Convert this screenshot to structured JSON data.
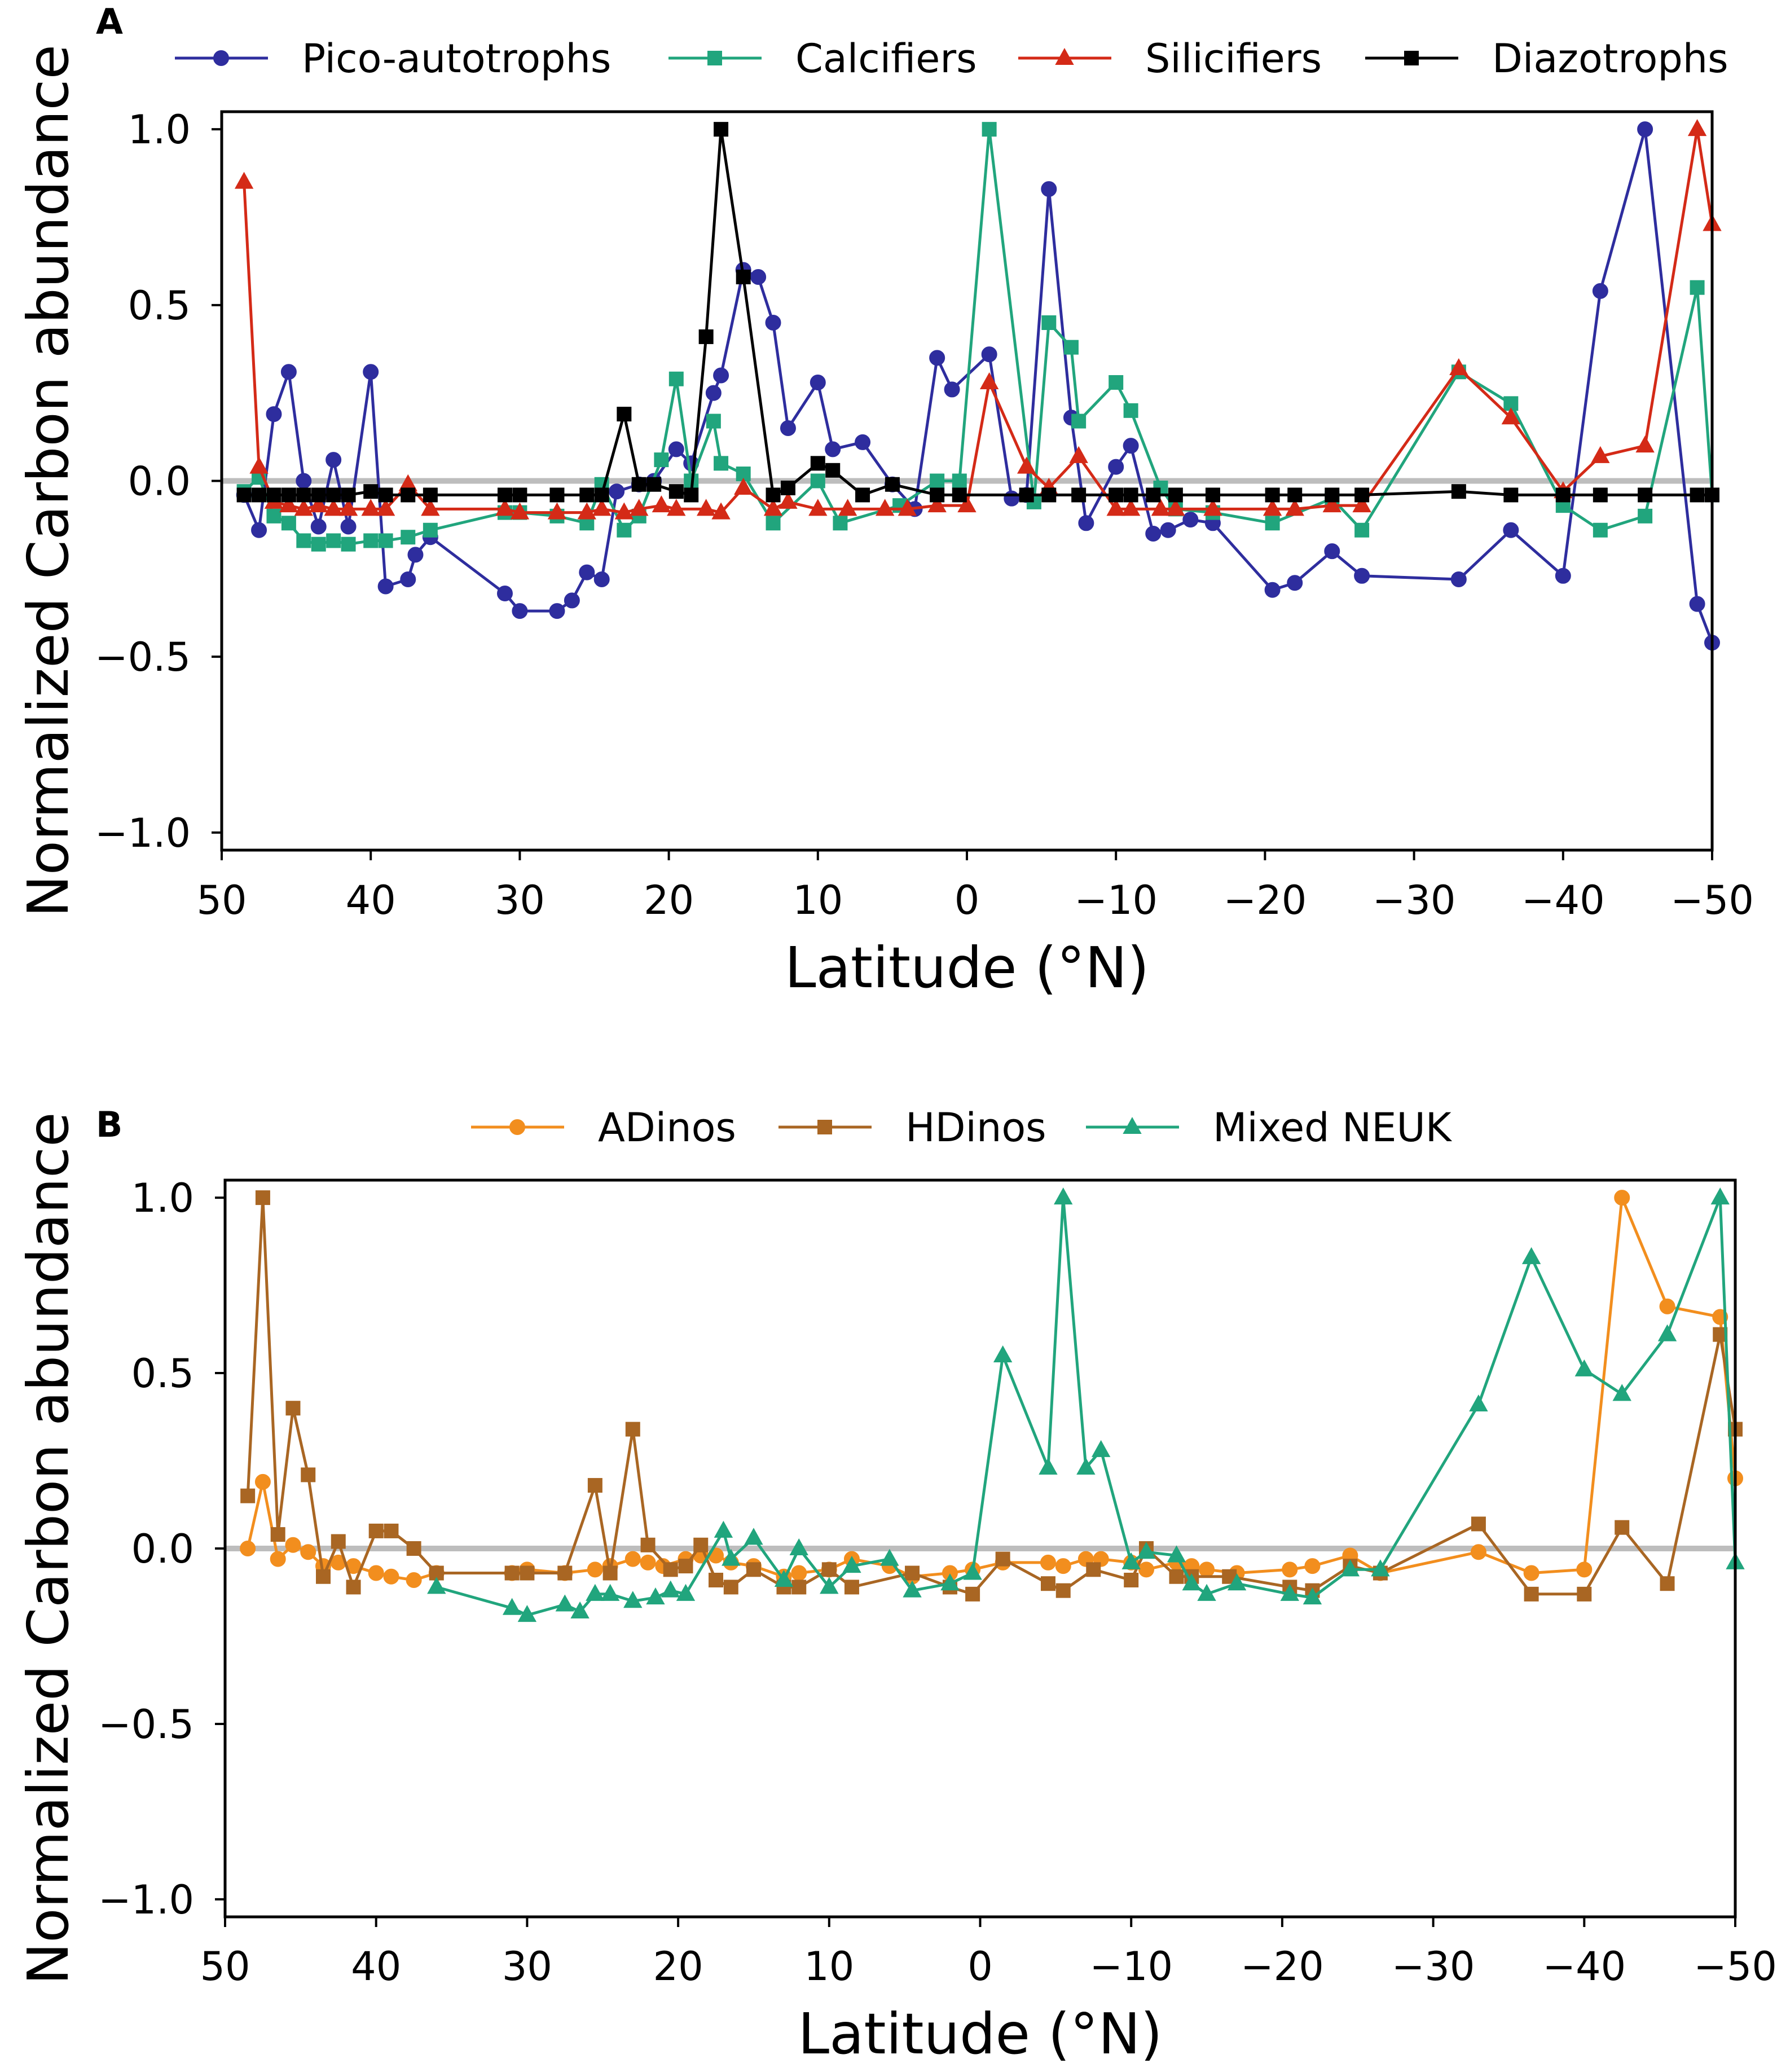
{
  "chart_data": [
    {
      "panel": "A",
      "type": "line",
      "ylabel": "Normalized Carbon abundance",
      "xlabel": "Latitude (°N)",
      "xlim": [
        50,
        -50
      ],
      "ylim": [
        -1.05,
        1.05
      ],
      "xticks": [
        50,
        40,
        30,
        20,
        10,
        0,
        -10,
        -20,
        -30,
        -40,
        -50
      ],
      "xtick_labels": [
        "50",
        "40",
        "30",
        "20",
        "10",
        "0",
        "−10",
        "−20",
        "−30",
        "−40",
        "−50"
      ],
      "yticks": [
        1.0,
        0.5,
        0.0,
        -0.5,
        -1.0
      ],
      "ytick_labels": [
        "1.0",
        "0.5",
        "0.0",
        "−0.5",
        "−1.0"
      ],
      "legend_position": "top",
      "reference_line": 0,
      "series": [
        {
          "name": "Pico-autotrophs",
          "color": "#2e2d9e",
          "marker": "circle",
          "x": [
            48.5,
            47.5,
            46.5,
            45.5,
            44.5,
            43.5,
            42.5,
            41.5,
            40,
            39,
            37.5,
            37,
            36,
            31,
            30,
            27.5,
            26.5,
            25.5,
            24.5,
            23.5,
            22,
            21,
            19.5,
            18.5,
            17,
            16.5,
            15,
            14,
            13,
            12,
            10,
            9,
            7,
            5,
            3.5,
            2,
            1,
            -1.5,
            -3,
            -4,
            -5.5,
            -7,
            -8,
            -10,
            -11,
            -12.5,
            -13.5,
            -15,
            -16.5,
            -20.5,
            -22,
            -24.5,
            -26.5,
            -33,
            -36.5,
            -40,
            -42.5,
            -45.5,
            -49,
            -50
          ],
          "y": [
            -0.04,
            -0.14,
            0.19,
            0.31,
            0.0,
            -0.13,
            0.06,
            -0.13,
            0.31,
            -0.3,
            -0.28,
            -0.21,
            -0.16,
            -0.32,
            -0.37,
            -0.37,
            -0.34,
            -0.26,
            -0.28,
            -0.03,
            -0.01,
            0.0,
            0.09,
            0.05,
            0.25,
            0.3,
            0.6,
            0.58,
            0.45,
            0.15,
            0.28,
            0.09,
            0.11,
            -0.01,
            -0.08,
            0.35,
            0.26,
            0.36,
            -0.05,
            -0.04,
            0.83,
            0.18,
            -0.12,
            0.04,
            0.1,
            -0.15,
            -0.14,
            -0.11,
            -0.12,
            -0.31,
            -0.29,
            -0.2,
            -0.27,
            -0.28,
            -0.14,
            -0.27,
            0.54,
            1.0,
            -0.35,
            -0.46
          ]
        },
        {
          "name": "Calcifiers",
          "color": "#21a57d",
          "marker": "square",
          "x": [
            48.5,
            47.5,
            46.5,
            45.5,
            44.5,
            43.5,
            42.5,
            41.5,
            40,
            39,
            37.5,
            36,
            31,
            30,
            27.5,
            25.5,
            24.5,
            23,
            22,
            20.5,
            19.5,
            18.5,
            17,
            16.5,
            15,
            13,
            10,
            8.5,
            4.5,
            2,
            0.5,
            -1.5,
            -4.5,
            -5.5,
            -7,
            -7.5,
            -10,
            -11,
            -13,
            -14,
            -16.5,
            -20.5,
            -24.5,
            -26.5,
            -33,
            -36.5,
            -40,
            -42.5,
            -45.5,
            -49,
            -50
          ],
          "y": [
            -0.03,
            0.01,
            -0.1,
            -0.12,
            -0.17,
            -0.18,
            -0.17,
            -0.18,
            -0.17,
            -0.17,
            -0.16,
            -0.14,
            -0.09,
            -0.09,
            -0.1,
            -0.12,
            -0.01,
            -0.14,
            -0.1,
            0.06,
            0.29,
            0.0,
            0.17,
            0.05,
            0.02,
            -0.12,
            0.0,
            -0.12,
            -0.07,
            0.0,
            0.0,
            1.0,
            -0.06,
            0.45,
            0.38,
            0.17,
            0.28,
            0.2,
            -0.02,
            -0.08,
            -0.09,
            -0.12,
            -0.05,
            -0.14,
            0.31,
            0.22,
            -0.07,
            -0.14,
            -0.1,
            0.55,
            -0.04
          ]
        },
        {
          "name": "Silicifiers",
          "color": "#d42a17",
          "marker": "triangle",
          "x": [
            48.5,
            47.5,
            46.5,
            45.5,
            44.5,
            43.5,
            42.5,
            41.5,
            40,
            39,
            37.5,
            36,
            31,
            30,
            27.5,
            25.5,
            24.5,
            23,
            22,
            20.5,
            19.5,
            17.5,
            16.5,
            15,
            13,
            12,
            10,
            8,
            5.5,
            4,
            2,
            0,
            -1.5,
            -4,
            -5.5,
            -7.5,
            -10,
            -11,
            -13,
            -14,
            -16.5,
            -20.5,
            -22,
            -24.5,
            -26.5,
            -33,
            -36.5,
            -40,
            -42.5,
            -45.5,
            -49,
            -50
          ],
          "y": [
            0.85,
            0.04,
            -0.06,
            -0.07,
            -0.08,
            -0.07,
            -0.08,
            -0.08,
            -0.08,
            -0.08,
            -0.01,
            -0.08,
            -0.08,
            -0.09,
            -0.09,
            -0.09,
            -0.08,
            -0.09,
            -0.08,
            -0.07,
            -0.08,
            -0.08,
            -0.09,
            -0.02,
            -0.08,
            -0.06,
            -0.08,
            -0.08,
            -0.08,
            -0.08,
            -0.07,
            -0.07,
            0.28,
            0.04,
            -0.02,
            0.07,
            -0.08,
            -0.08,
            -0.08,
            -0.08,
            -0.08,
            -0.08,
            -0.08,
            -0.07,
            -0.07,
            0.32,
            0.18,
            -0.03,
            0.07,
            0.1,
            1.0,
            0.73
          ]
        },
        {
          "name": "Diazotrophs",
          "color": "#000000",
          "marker": "square",
          "x": [
            48.5,
            47.5,
            46.5,
            45.5,
            44.5,
            43.5,
            42.5,
            41.5,
            40,
            39,
            37.5,
            36,
            31,
            30,
            27.5,
            25.5,
            24.5,
            23,
            22,
            21,
            19.5,
            18.5,
            17.5,
            16.5,
            15,
            13,
            12,
            10,
            9,
            7,
            5,
            2,
            0.5,
            -4,
            -5.5,
            -7.5,
            -10,
            -11,
            -12.5,
            -14,
            -16.5,
            -20.5,
            -22,
            -24.5,
            -26.5,
            -33,
            -36.5,
            -40,
            -42.5,
            -45.5,
            -49,
            -50
          ],
          "y": [
            -0.04,
            -0.04,
            -0.04,
            -0.04,
            -0.04,
            -0.04,
            -0.04,
            -0.04,
            -0.03,
            -0.04,
            -0.04,
            -0.04,
            -0.04,
            -0.04,
            -0.04,
            -0.04,
            -0.04,
            0.19,
            -0.01,
            -0.01,
            -0.03,
            -0.04,
            0.41,
            1.0,
            0.58,
            -0.04,
            -0.02,
            0.05,
            0.03,
            -0.04,
            -0.01,
            -0.04,
            -0.04,
            -0.04,
            -0.04,
            -0.04,
            -0.04,
            -0.04,
            -0.04,
            -0.04,
            -0.04,
            -0.04,
            -0.04,
            -0.04,
            -0.04,
            -0.03,
            -0.04,
            -0.04,
            -0.04,
            -0.04,
            -0.04,
            -0.04
          ]
        }
      ]
    },
    {
      "panel": "B",
      "type": "line",
      "ylabel": "Normalized Carbon abundance",
      "xlabel": "Latitude (°N)",
      "xlim": [
        50,
        -50
      ],
      "ylim": [
        -1.05,
        1.05
      ],
      "xticks": [
        50,
        40,
        30,
        20,
        10,
        0,
        -10,
        -20,
        -30,
        -40,
        -50
      ],
      "xtick_labels": [
        "50",
        "40",
        "30",
        "20",
        "10",
        "0",
        "−10",
        "−20",
        "−30",
        "−40",
        "−50"
      ],
      "yticks": [
        1.0,
        0.5,
        0.0,
        -0.5,
        -1.0
      ],
      "ytick_labels": [
        "1.0",
        "0.5",
        "0.0",
        "−0.5",
        "−1.0"
      ],
      "legend_position": "top",
      "reference_line": 0,
      "series": [
        {
          "name": "ADinos",
          "color": "#f28e1e",
          "marker": "circle",
          "x": [
            48.5,
            47.5,
            46.5,
            45.5,
            44.5,
            43.5,
            42.5,
            41.5,
            40,
            39,
            37.5,
            36,
            31,
            30,
            27.5,
            25.5,
            24.5,
            23,
            22,
            21,
            19.5,
            18.5,
            17.5,
            16.5,
            15,
            13,
            12,
            10,
            8.5,
            6,
            4.5,
            2,
            0.5,
            -1.5,
            -4.5,
            -5.5,
            -7,
            -8,
            -10,
            -11,
            -13,
            -14,
            -15,
            -17,
            -20.5,
            -22,
            -24.5,
            -26.5,
            -33,
            -36.5,
            -40,
            -42.5,
            -45.5,
            -49,
            -50
          ],
          "y": [
            0.0,
            0.19,
            -0.03,
            0.01,
            -0.01,
            -0.05,
            -0.04,
            -0.05,
            -0.07,
            -0.08,
            -0.09,
            -0.07,
            -0.07,
            -0.06,
            -0.07,
            -0.06,
            -0.05,
            -0.03,
            -0.04,
            -0.05,
            -0.03,
            -0.02,
            -0.02,
            -0.04,
            -0.05,
            -0.08,
            -0.07,
            -0.06,
            -0.03,
            -0.05,
            -0.08,
            -0.07,
            -0.06,
            -0.04,
            -0.04,
            -0.05,
            -0.03,
            -0.03,
            -0.04,
            -0.06,
            -0.04,
            -0.05,
            -0.06,
            -0.07,
            -0.06,
            -0.05,
            -0.02,
            -0.07,
            -0.01,
            -0.07,
            -0.06,
            1.0,
            0.69,
            0.66,
            0.2
          ]
        },
        {
          "name": "HDinos",
          "color": "#a96623",
          "marker": "square",
          "x": [
            48.5,
            47.5,
            46.5,
            45.5,
            44.5,
            43.5,
            42.5,
            41.5,
            40,
            39,
            37.5,
            36,
            31,
            30,
            27.5,
            25.5,
            24.5,
            23,
            22,
            20.5,
            19.5,
            18.5,
            17.5,
            16.5,
            15,
            13,
            12,
            10,
            8.5,
            4.5,
            2,
            0.5,
            -1.5,
            -4.5,
            -5.5,
            -7.5,
            -10,
            -11,
            -13,
            -14,
            -16.5,
            -20.5,
            -22,
            -24.5,
            -26.5,
            -33,
            -36.5,
            -40,
            -42.5,
            -45.5,
            -49,
            -50
          ],
          "y": [
            0.15,
            1.0,
            0.04,
            0.4,
            0.21,
            -0.08,
            0.02,
            -0.11,
            0.05,
            0.05,
            0.0,
            -0.07,
            -0.07,
            -0.07,
            -0.07,
            0.18,
            -0.07,
            0.34,
            0.01,
            -0.06,
            -0.05,
            0.01,
            -0.09,
            -0.11,
            -0.06,
            -0.11,
            -0.11,
            -0.06,
            -0.11,
            -0.07,
            -0.11,
            -0.13,
            -0.03,
            -0.1,
            -0.12,
            -0.06,
            -0.09,
            0.0,
            -0.08,
            -0.08,
            -0.08,
            -0.11,
            -0.12,
            -0.05,
            -0.07,
            0.07,
            -0.13,
            -0.13,
            0.06,
            -0.1,
            0.61,
            0.34
          ]
        },
        {
          "name": "Mixed NEUK",
          "color": "#21a57d",
          "marker": "triangle",
          "x": [
            36,
            31,
            30,
            27.5,
            26.5,
            25.5,
            24.5,
            23,
            21.5,
            20.5,
            19.5,
            17,
            16.5,
            15,
            13,
            12,
            10,
            8.5,
            6,
            4.5,
            2,
            0.5,
            -1.5,
            -4.5,
            -5.5,
            -7,
            -8,
            -10,
            -11,
            -13,
            -14,
            -15,
            -17,
            -20.5,
            -22,
            -24.5,
            -26.5,
            -33,
            -36.5,
            -40,
            -42.5,
            -45.5,
            -49,
            -50
          ],
          "y": [
            -0.11,
            -0.17,
            -0.19,
            -0.16,
            -0.18,
            -0.13,
            -0.13,
            -0.15,
            -0.14,
            -0.12,
            -0.13,
            0.05,
            -0.03,
            0.03,
            -0.09,
            0.0,
            -0.11,
            -0.05,
            -0.03,
            -0.12,
            -0.1,
            -0.07,
            0.55,
            0.23,
            1.0,
            0.23,
            0.28,
            -0.04,
            -0.01,
            -0.02,
            -0.1,
            -0.13,
            -0.1,
            -0.13,
            -0.14,
            -0.06,
            -0.06,
            0.41,
            0.83,
            0.51,
            0.44,
            0.61,
            1.0,
            -0.04
          ]
        }
      ]
    }
  ],
  "panels": [
    {
      "letter": "A"
    },
    {
      "letter": "B"
    }
  ]
}
